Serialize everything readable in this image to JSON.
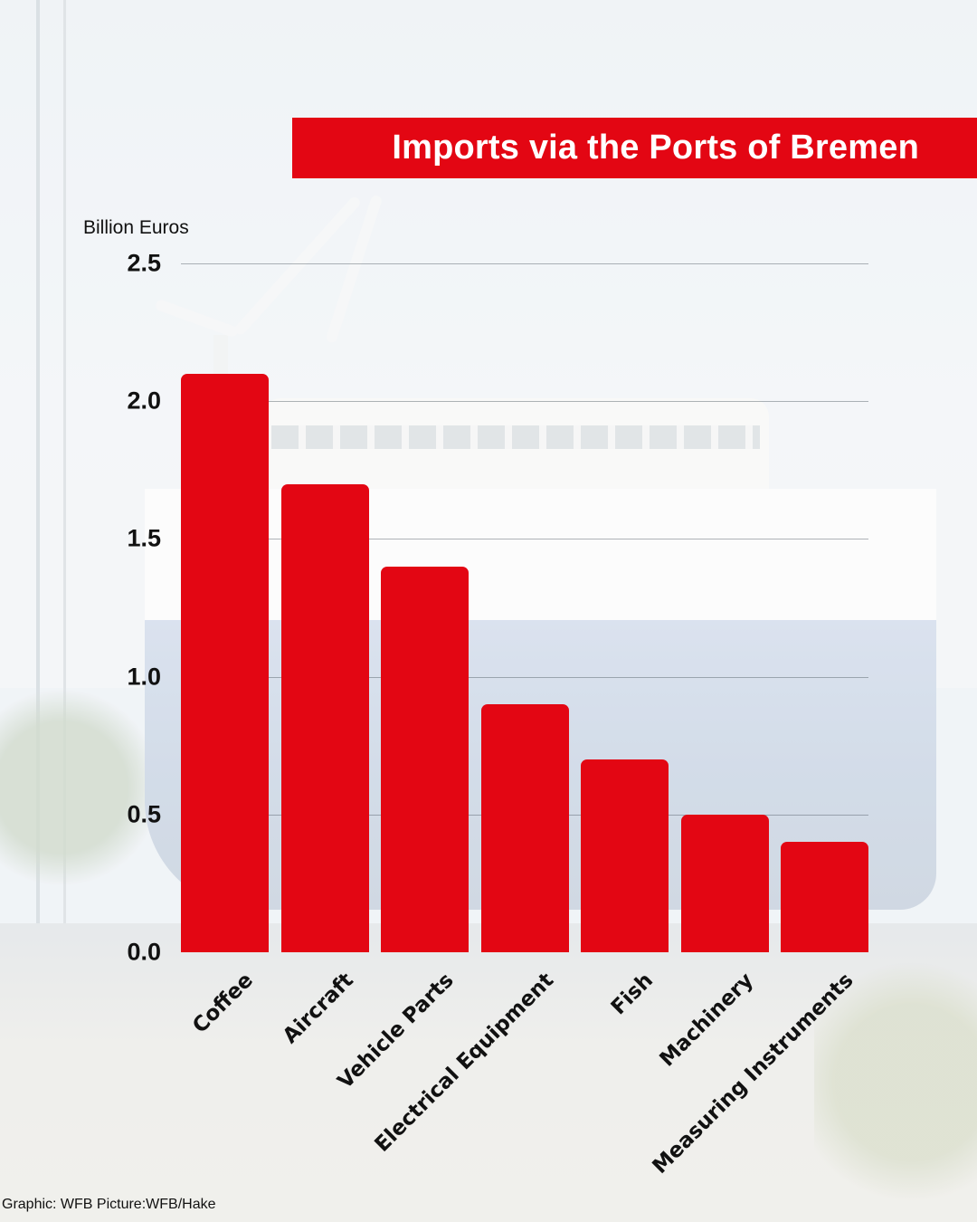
{
  "header": {
    "title": "Imports via the Ports of Bremen"
  },
  "axis": {
    "y_unit_label": "Billion Euros",
    "y_ticks": [
      "0.0",
      "0.5",
      "1.0",
      "1.5",
      "2.0",
      "2.5"
    ]
  },
  "categories": [
    "Coffee",
    "Aircraft",
    "Vehicle Parts",
    "Electrical Equipment",
    "Fish",
    "Machinery",
    "Measuring Instruments"
  ],
  "footer": {
    "credit": "Graphic: WFB Picture:WFB/Hake"
  },
  "colors": {
    "bar": "#e30613",
    "title_bar": "#e30613",
    "title_text": "#ffffff"
  },
  "chart_data": {
    "type": "bar",
    "title": "Imports via the Ports of Bremen",
    "xlabel": "",
    "ylabel": "Billion Euros",
    "categories": [
      "Coffee",
      "Aircraft",
      "Vehicle Parts",
      "Electrical Equipment",
      "Fish",
      "Machinery",
      "Measuring Instruments"
    ],
    "values": [
      2.1,
      1.7,
      1.4,
      0.9,
      0.7,
      0.5,
      0.4
    ],
    "ylim": [
      0,
      2.5
    ],
    "yticks": [
      0.0,
      0.5,
      1.0,
      1.5,
      2.0,
      2.5
    ],
    "grid": true,
    "legend": null,
    "bar_color": "#e30613",
    "source": "Graphic: WFB Picture:WFB/Hake"
  }
}
